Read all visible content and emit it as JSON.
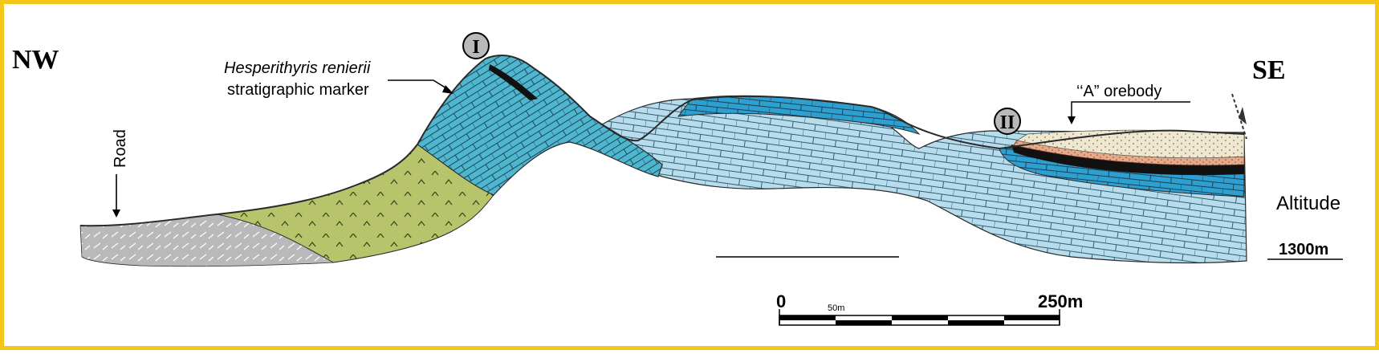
{
  "section": {
    "direction_left": "NW",
    "direction_right": "SE",
    "marker_name": "Hesperithyris renierii",
    "marker_caption": "stratigraphic marker",
    "road_label": "Road",
    "orebody_label": "‘‘A” orebody",
    "altitude_label": "Altitude",
    "altitude_value": "1300m",
    "site_labels": [
      "I",
      "II"
    ]
  },
  "scale_bar": {
    "start_label": "0",
    "mid_label": "50m",
    "end_label": "250m"
  },
  "colors": {
    "border": "#f5c518",
    "gray_unit": "#b9b9bb",
    "green_unit": "#b7c46b",
    "cyan_limestone": "#4fb6cf",
    "light_limestone": "#b8dcec",
    "mid_limestone": "#2ea0d0",
    "orebody_sand": "#efe7cf",
    "orebody_pink": "#e5a98c",
    "black_band": "#111111"
  }
}
